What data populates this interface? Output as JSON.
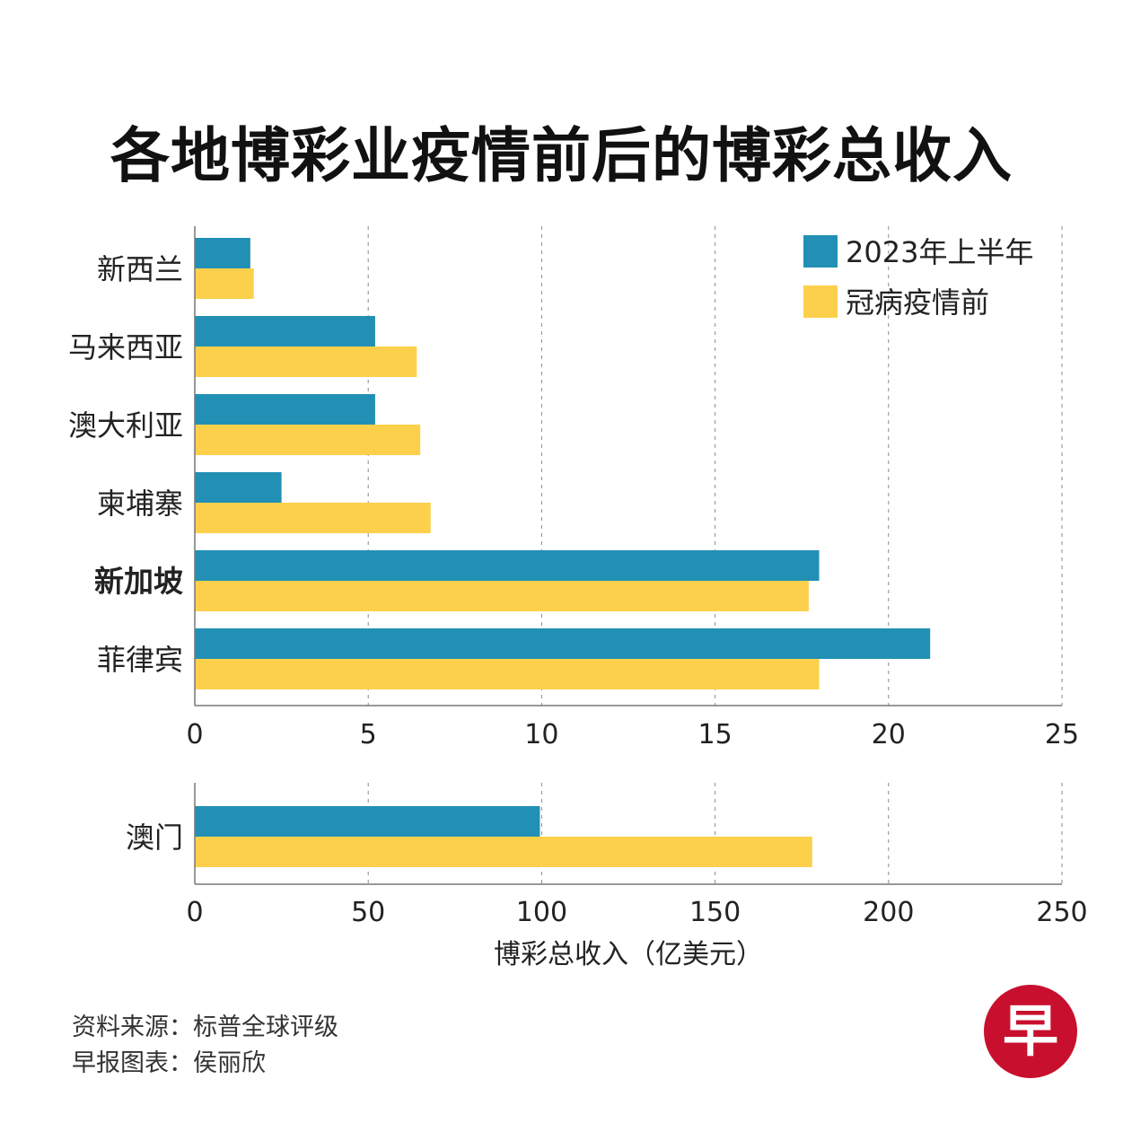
{
  "title": "各地博彩业疫情前后的博彩总收入",
  "colors": {
    "h1_2023": "#2290b4",
    "pre_covid": "#fdd04c"
  },
  "chart_data": [
    {
      "type": "bar",
      "orientation": "horizontal",
      "categories": [
        "新西兰",
        "马来西亚",
        "澳大利亚",
        "柬埔寨",
        "新加坡",
        "菲律宾"
      ],
      "highlight_category": "新加坡",
      "series": [
        {
          "name": "2023年上半年",
          "values": [
            1.6,
            5.2,
            5.2,
            2.5,
            18.0,
            21.2
          ]
        },
        {
          "name": "冠病疫情前",
          "values": [
            1.7,
            6.4,
            6.5,
            6.8,
            17.7,
            18.0
          ]
        }
      ],
      "xlim": [
        0,
        25
      ],
      "xticks": [
        0,
        5,
        10,
        15,
        20,
        25
      ],
      "grid": "vertical dashed",
      "legend": "top-right"
    },
    {
      "type": "bar",
      "orientation": "horizontal",
      "categories": [
        "澳门"
      ],
      "series": [
        {
          "name": "2023年上半年",
          "values": [
            99.5
          ]
        },
        {
          "name": "冠病疫情前",
          "values": [
            178
          ]
        }
      ],
      "xlim": [
        0,
        250
      ],
      "xticks": [
        0,
        50,
        100,
        150,
        200,
        250
      ],
      "xlabel": "博彩总收入（亿美元）",
      "grid": "vertical dashed"
    }
  ],
  "footer": {
    "source": "资料来源：标普全球评级",
    "credit": "早报图表：侯丽欣"
  },
  "logo": {
    "char": "早"
  }
}
